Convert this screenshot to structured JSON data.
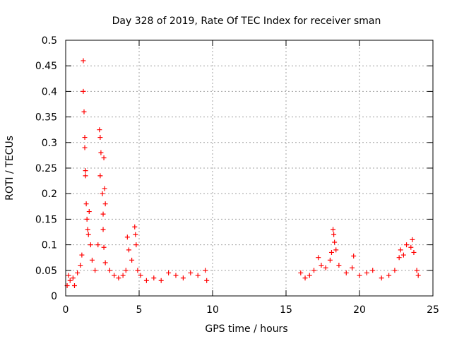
{
  "chart_data": {
    "type": "scatter",
    "title": "Day 328 of 2019, Rate Of TEC Index for receiver sman",
    "xlabel": "GPS time / hours",
    "ylabel": "ROTI / TECUs",
    "xlim": [
      0,
      25
    ],
    "ylim": [
      0,
      0.5
    ],
    "grid": true,
    "x_ticks": [
      0,
      5,
      10,
      15,
      20,
      25
    ],
    "x_tick_labels": [
      "0",
      "5",
      "10",
      "15",
      "20",
      "25"
    ],
    "y_ticks": [
      0,
      0.05,
      0.1,
      0.15,
      0.2,
      0.25,
      0.3,
      0.35,
      0.4,
      0.45,
      0.5
    ],
    "y_tick_labels": [
      "0",
      "0.05",
      "0.1",
      "0.15",
      "0.2",
      "0.25",
      "0.3",
      "0.35",
      "0.4",
      "0.45",
      "0.5"
    ],
    "marker": "+",
    "series": [
      {
        "name": "ROTI",
        "color": "#ff0000",
        "points": [
          [
            0.1,
            0.02
          ],
          [
            0.2,
            0.04
          ],
          [
            0.3,
            0.03
          ],
          [
            0.5,
            0.035
          ],
          [
            0.6,
            0.02
          ],
          [
            0.8,
            0.045
          ],
          [
            1.0,
            0.06
          ],
          [
            1.1,
            0.08
          ],
          [
            1.2,
            0.46
          ],
          [
            1.2,
            0.4
          ],
          [
            1.25,
            0.36
          ],
          [
            1.3,
            0.31
          ],
          [
            1.3,
            0.29
          ],
          [
            1.35,
            0.245
          ],
          [
            1.35,
            0.235
          ],
          [
            1.4,
            0.18
          ],
          [
            1.45,
            0.15
          ],
          [
            1.5,
            0.13
          ],
          [
            1.55,
            0.12
          ],
          [
            1.6,
            0.165
          ],
          [
            1.7,
            0.1
          ],
          [
            1.8,
            0.07
          ],
          [
            2.0,
            0.05
          ],
          [
            2.2,
            0.1
          ],
          [
            2.3,
            0.325
          ],
          [
            2.35,
            0.31
          ],
          [
            2.4,
            0.28
          ],
          [
            2.35,
            0.235
          ],
          [
            2.5,
            0.2
          ],
          [
            2.55,
            0.16
          ],
          [
            2.6,
            0.27
          ],
          [
            2.65,
            0.21
          ],
          [
            2.7,
            0.18
          ],
          [
            2.55,
            0.13
          ],
          [
            2.6,
            0.095
          ],
          [
            2.7,
            0.065
          ],
          [
            3.0,
            0.05
          ],
          [
            3.3,
            0.04
          ],
          [
            3.6,
            0.035
          ],
          [
            3.9,
            0.04
          ],
          [
            4.1,
            0.05
          ],
          [
            4.2,
            0.115
          ],
          [
            4.3,
            0.09
          ],
          [
            4.5,
            0.07
          ],
          [
            4.7,
            0.135
          ],
          [
            4.75,
            0.12
          ],
          [
            4.8,
            0.1
          ],
          [
            4.9,
            0.05
          ],
          [
            5.1,
            0.04
          ],
          [
            5.5,
            0.03
          ],
          [
            6.0,
            0.035
          ],
          [
            6.5,
            0.03
          ],
          [
            7.0,
            0.045
          ],
          [
            7.5,
            0.04
          ],
          [
            8.0,
            0.035
          ],
          [
            8.5,
            0.045
          ],
          [
            9.0,
            0.04
          ],
          [
            9.5,
            0.05
          ],
          [
            9.6,
            0.03
          ],
          [
            16.0,
            0.045
          ],
          [
            16.3,
            0.035
          ],
          [
            16.6,
            0.04
          ],
          [
            16.9,
            0.05
          ],
          [
            17.2,
            0.075
          ],
          [
            17.4,
            0.06
          ],
          [
            17.7,
            0.055
          ],
          [
            18.0,
            0.07
          ],
          [
            18.1,
            0.085
          ],
          [
            18.2,
            0.13
          ],
          [
            18.25,
            0.12
          ],
          [
            18.3,
            0.105
          ],
          [
            18.4,
            0.09
          ],
          [
            18.6,
            0.06
          ],
          [
            19.1,
            0.045
          ],
          [
            19.5,
            0.055
          ],
          [
            19.6,
            0.078
          ],
          [
            20.0,
            0.04
          ],
          [
            20.5,
            0.045
          ],
          [
            20.9,
            0.05
          ],
          [
            21.5,
            0.035
          ],
          [
            22.0,
            0.04
          ],
          [
            22.4,
            0.05
          ],
          [
            22.7,
            0.075
          ],
          [
            22.8,
            0.09
          ],
          [
            23.0,
            0.08
          ],
          [
            23.2,
            0.1
          ],
          [
            23.5,
            0.095
          ],
          [
            23.6,
            0.11
          ],
          [
            23.7,
            0.085
          ],
          [
            23.9,
            0.05
          ],
          [
            24.0,
            0.04
          ]
        ]
      }
    ]
  }
}
